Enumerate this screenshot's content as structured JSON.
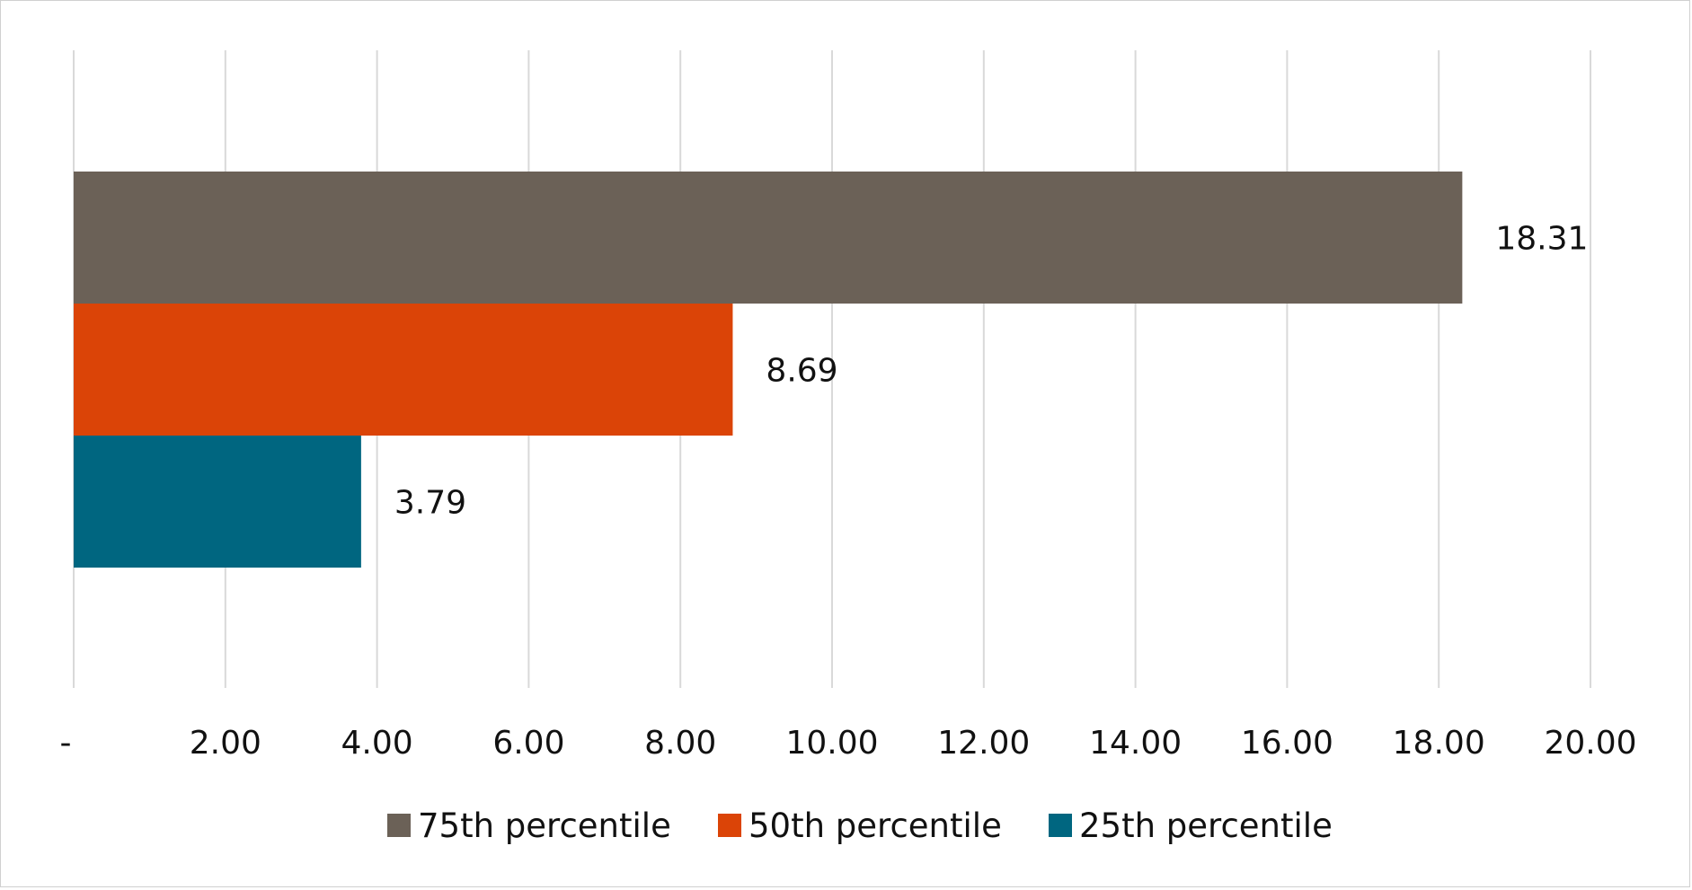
{
  "chart_data": {
    "type": "bar",
    "orientation": "horizontal",
    "title": "",
    "xlabel": "",
    "ylabel": "",
    "xlim": [
      0,
      20
    ],
    "x_ticks": [
      0,
      2,
      4,
      6,
      8,
      10,
      12,
      14,
      16,
      18,
      20
    ],
    "x_tick_labels": [
      "-",
      "2.00",
      "4.00",
      "6.00",
      "8.00",
      "10.00",
      "12.00",
      "14.00",
      "16.00",
      "18.00",
      "20.00"
    ],
    "grid": "vertical",
    "legend_position": "bottom",
    "series": [
      {
        "name": "75th percentile",
        "value": 18.31,
        "label": "18.31",
        "color": "#6b6157"
      },
      {
        "name": "50th percentile",
        "value": 8.69,
        "label": "8.69",
        "color": "#db4407"
      },
      {
        "name": "25th percentile",
        "value": 3.79,
        "label": "3.79",
        "color": "#006680"
      }
    ]
  }
}
